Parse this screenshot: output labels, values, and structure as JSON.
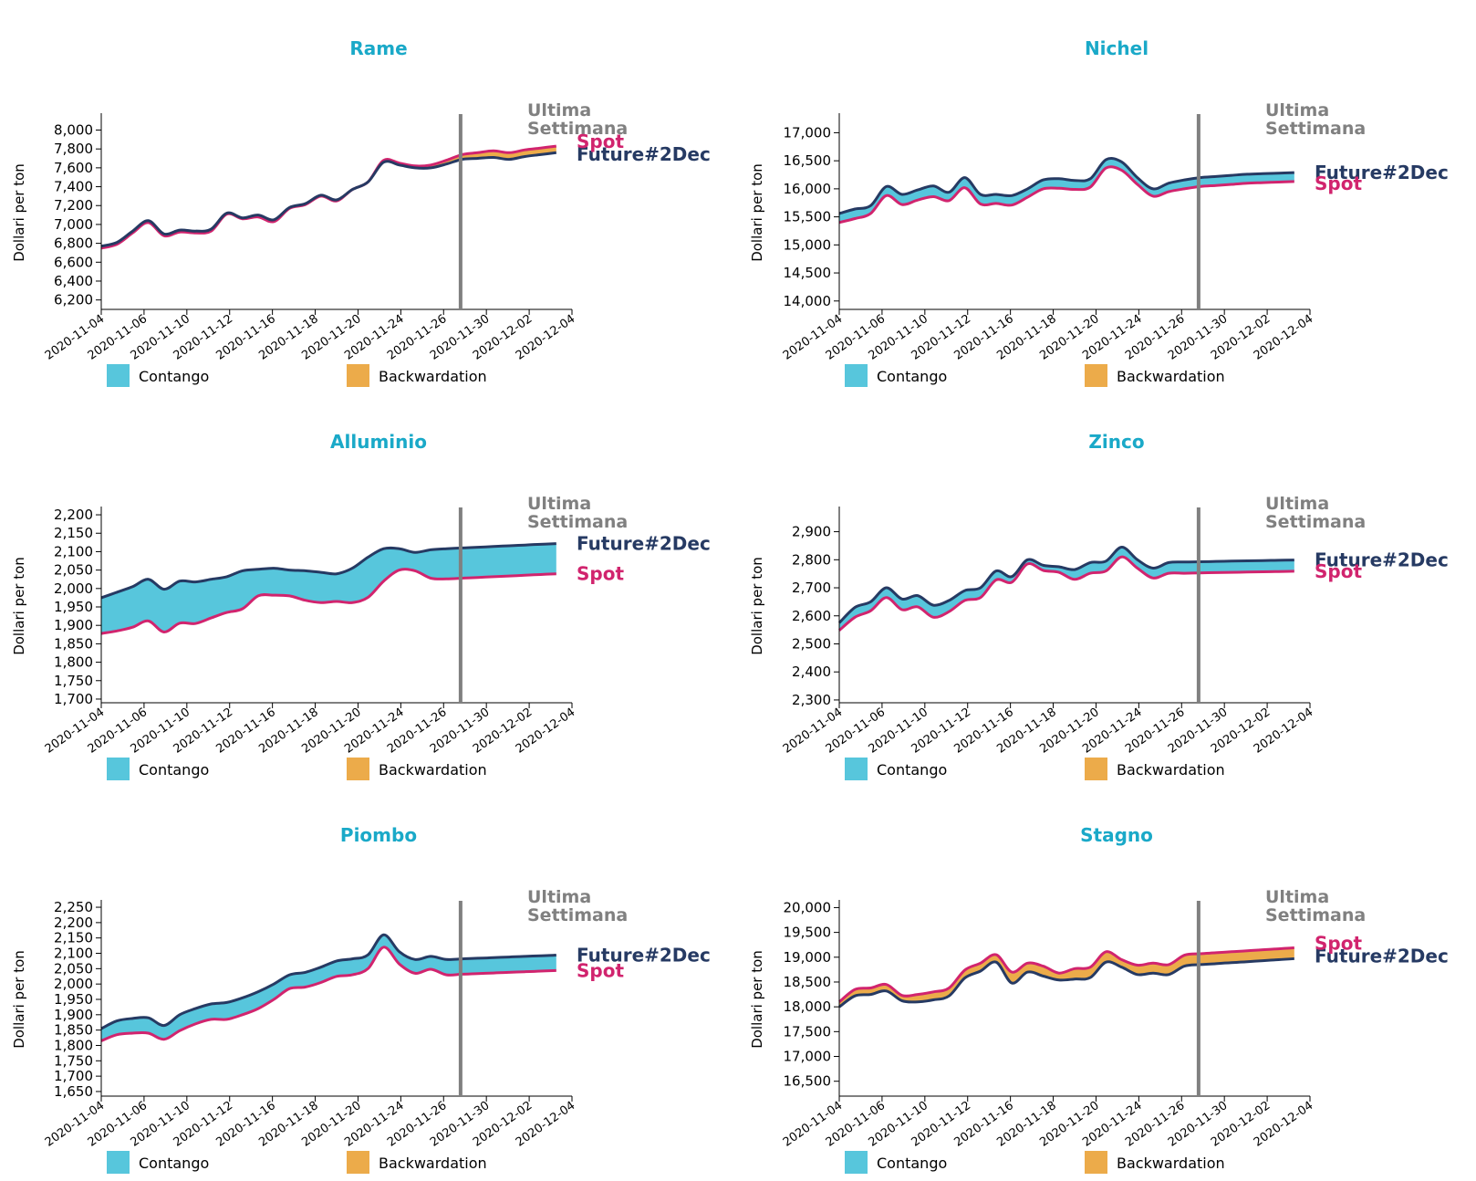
{
  "colors": {
    "title": "#1aa9c8",
    "future": "#263a63",
    "spot": "#d1246e",
    "contango": "#57c6dc",
    "backwardation": "#ecab4a",
    "marker": "#808080",
    "axis": "#000000"
  },
  "labels": {
    "ylabel": "Dollari per ton",
    "week_line1": "Ultima",
    "week_line2": "Settimana",
    "future": "Future#2Dec",
    "spot": "Spot",
    "contango": "Contango",
    "backwardation": "Backwardation"
  },
  "chart_data": [
    {
      "type": "area",
      "title": "Rame",
      "ylabel": "Dollari per ton",
      "xlim": [
        0,
        30
      ],
      "ylim": [
        6100,
        8150
      ],
      "yticks": [
        6200,
        6400,
        6600,
        6800,
        7000,
        7200,
        7400,
        7600,
        7800,
        8000
      ],
      "xtick_labels": [
        "2020-11-04",
        "2020-11-06",
        "2020-11-10",
        "2020-11-12",
        "2020-11-16",
        "2020-11-18",
        "2020-11-20",
        "2020-11-24",
        "2020-11-26",
        "2020-11-30",
        "2020-12-02",
        "2020-12-04"
      ],
      "xtick_positions": [
        0,
        2.727,
        5.455,
        8.182,
        10.909,
        13.636,
        16.364,
        19.091,
        21.818,
        24.545,
        27.273,
        30
      ],
      "last_week_x": 22.9,
      "x": [
        0,
        1,
        2,
        3,
        4,
        5,
        6,
        7,
        8,
        9,
        10,
        11,
        12,
        13,
        14,
        15,
        16,
        17,
        18,
        19,
        20,
        21,
        22,
        23,
        24,
        25,
        26,
        27,
        28,
        29
      ],
      "series": [
        {
          "name": "Future#2Dec",
          "values": [
            6770,
            6810,
            6930,
            7040,
            6900,
            6940,
            6930,
            6950,
            7120,
            7070,
            7100,
            7050,
            7180,
            7220,
            7310,
            7260,
            7370,
            7450,
            7660,
            7630,
            7600,
            7600,
            7640,
            7690,
            7700,
            7710,
            7690,
            7720,
            7740,
            7760
          ]
        },
        {
          "name": "Spot",
          "values": [
            6750,
            6790,
            6910,
            7020,
            6880,
            6920,
            6910,
            6930,
            7110,
            7060,
            7080,
            7030,
            7170,
            7210,
            7300,
            7250,
            7370,
            7450,
            7680,
            7650,
            7620,
            7630,
            7680,
            7740,
            7760,
            7780,
            7760,
            7790,
            7810,
            7830
          ]
        }
      ],
      "n_points": 30,
      "label_order": "spot_top"
    },
    {
      "type": "area",
      "title": "Nichel",
      "ylabel": "Dollari per ton",
      "xlim": [
        0,
        30
      ],
      "ylim": [
        13850,
        17300
      ],
      "yticks": [
        14000,
        14500,
        15000,
        15500,
        16000,
        16500,
        17000
      ],
      "xtick_labels": [
        "2020-11-04",
        "2020-11-06",
        "2020-11-10",
        "2020-11-12",
        "2020-11-16",
        "2020-11-18",
        "2020-11-20",
        "2020-11-24",
        "2020-11-26",
        "2020-11-30",
        "2020-12-02",
        "2020-12-04"
      ],
      "xtick_positions": [
        0,
        2.727,
        5.455,
        8.182,
        10.909,
        13.636,
        16.364,
        19.091,
        21.818,
        24.545,
        27.273,
        30
      ],
      "last_week_x": 22.9,
      "x": [
        0,
        1,
        2,
        3,
        4,
        5,
        6,
        7,
        8,
        9,
        10,
        11,
        12,
        13,
        14,
        15,
        16,
        17,
        18,
        19,
        20,
        21,
        22,
        23,
        24,
        25,
        26,
        27,
        28,
        29
      ],
      "series": [
        {
          "name": "Future#2Dec",
          "values": [
            15560,
            15640,
            15700,
            16040,
            15900,
            15980,
            16050,
            15940,
            16200,
            15900,
            15900,
            15880,
            16000,
            16160,
            16180,
            16150,
            16180,
            16520,
            16480,
            16200,
            16000,
            16100,
            16160,
            16200,
            16220,
            16240,
            16260,
            16270,
            16280,
            16290
          ]
        },
        {
          "name": "Spot",
          "values": [
            15400,
            15470,
            15560,
            15880,
            15720,
            15800,
            15860,
            15790,
            16020,
            15730,
            15740,
            15710,
            15850,
            16000,
            16010,
            15990,
            16030,
            16370,
            16330,
            16080,
            15870,
            15950,
            16000,
            16040,
            16060,
            16080,
            16100,
            16110,
            16120,
            16130
          ]
        }
      ],
      "n_points": 30,
      "label_order": "future_top"
    },
    {
      "type": "area",
      "title": "Alluminio",
      "ylabel": "Dollari per ton",
      "xlim": [
        0,
        30
      ],
      "ylim": [
        1690,
        2215
      ],
      "yticks": [
        1700,
        1750,
        1800,
        1850,
        1900,
        1950,
        2000,
        2050,
        2100,
        2150,
        2200
      ],
      "xtick_labels": [
        "2020-11-04",
        "2020-11-06",
        "2020-11-10",
        "2020-11-12",
        "2020-11-16",
        "2020-11-18",
        "2020-11-20",
        "2020-11-24",
        "2020-11-26",
        "2020-11-30",
        "2020-12-02",
        "2020-12-04"
      ],
      "xtick_positions": [
        0,
        2.727,
        5.455,
        8.182,
        10.909,
        13.636,
        16.364,
        19.091,
        21.818,
        24.545,
        27.273,
        30
      ],
      "last_week_x": 22.9,
      "x": [
        0,
        1,
        2,
        3,
        4,
        5,
        6,
        7,
        8,
        9,
        10,
        11,
        12,
        13,
        14,
        15,
        16,
        17,
        18,
        19,
        20,
        21,
        22,
        23,
        24,
        25,
        26,
        27,
        28,
        29
      ],
      "series": [
        {
          "name": "Future#2Dec",
          "values": [
            1975,
            1990,
            2005,
            2025,
            1998,
            2020,
            2018,
            2025,
            2032,
            2048,
            2052,
            2055,
            2050,
            2048,
            2044,
            2040,
            2055,
            2085,
            2108,
            2108,
            2098,
            2105,
            2108,
            2110,
            2112,
            2114,
            2116,
            2118,
            2120,
            2122
          ]
        },
        {
          "name": "Spot",
          "values": [
            1878,
            1885,
            1895,
            1912,
            1882,
            1906,
            1905,
            1920,
            1935,
            1945,
            1980,
            1982,
            1980,
            1968,
            1962,
            1965,
            1962,
            1976,
            2020,
            2050,
            2048,
            2028,
            2026,
            2028,
            2030,
            2032,
            2034,
            2036,
            2038,
            2040
          ]
        }
      ],
      "n_points": 30,
      "label_order": "future_top"
    },
    {
      "type": "area",
      "title": "Zinco",
      "ylabel": "Dollari per ton",
      "xlim": [
        0,
        30
      ],
      "ylim": [
        2290,
        2980
      ],
      "yticks": [
        2300,
        2400,
        2500,
        2600,
        2700,
        2800,
        2900
      ],
      "xtick_labels": [
        "2020-11-04",
        "2020-11-06",
        "2020-11-10",
        "2020-11-12",
        "2020-11-16",
        "2020-11-18",
        "2020-11-20",
        "2020-11-24",
        "2020-11-26",
        "2020-11-30",
        "2020-12-02",
        "2020-12-04"
      ],
      "xtick_positions": [
        0,
        2.727,
        5.455,
        8.182,
        10.909,
        13.636,
        16.364,
        19.091,
        21.818,
        24.545,
        27.273,
        30
      ],
      "last_week_x": 22.9,
      "x": [
        0,
        1,
        2,
        3,
        4,
        5,
        6,
        7,
        8,
        9,
        10,
        11,
        12,
        13,
        14,
        15,
        16,
        17,
        18,
        19,
        20,
        21,
        22,
        23,
        24,
        25,
        26,
        27,
        28,
        29
      ],
      "series": [
        {
          "name": "Future#2Dec",
          "values": [
            2575,
            2630,
            2650,
            2700,
            2660,
            2672,
            2638,
            2655,
            2690,
            2700,
            2760,
            2740,
            2800,
            2780,
            2775,
            2765,
            2790,
            2795,
            2845,
            2800,
            2770,
            2790,
            2792,
            2793,
            2794,
            2795,
            2796,
            2797,
            2798,
            2799
          ]
        },
        {
          "name": "Spot",
          "values": [
            2548,
            2595,
            2618,
            2665,
            2622,
            2632,
            2595,
            2615,
            2655,
            2665,
            2728,
            2720,
            2785,
            2762,
            2755,
            2730,
            2752,
            2760,
            2810,
            2770,
            2735,
            2752,
            2752,
            2753,
            2754,
            2755,
            2756,
            2757,
            2758,
            2759
          ]
        }
      ],
      "n_points": 30,
      "label_order": "future_top"
    },
    {
      "type": "area",
      "title": "Piombo",
      "ylabel": "Dollari per ton",
      "xlim": [
        0,
        30
      ],
      "ylim": [
        1635,
        2265
      ],
      "yticks": [
        1650,
        1700,
        1750,
        1800,
        1850,
        1900,
        1950,
        2000,
        2050,
        2100,
        2150,
        2200,
        2250
      ],
      "xtick_labels": [
        "2020-11-04",
        "2020-11-06",
        "2020-11-10",
        "2020-11-12",
        "2020-11-16",
        "2020-11-18",
        "2020-11-20",
        "2020-11-24",
        "2020-11-26",
        "2020-11-30",
        "2020-12-02",
        "2020-12-04"
      ],
      "xtick_positions": [
        0,
        2.727,
        5.455,
        8.182,
        10.909,
        13.636,
        16.364,
        19.091,
        21.818,
        24.545,
        27.273,
        30
      ],
      "last_week_x": 22.9,
      "x": [
        0,
        1,
        2,
        3,
        4,
        5,
        6,
        7,
        8,
        9,
        10,
        11,
        12,
        13,
        14,
        15,
        16,
        17,
        18,
        19,
        20,
        21,
        22,
        23,
        24,
        25,
        26,
        27,
        28,
        29
      ],
      "series": [
        {
          "name": "Future#2Dec",
          "values": [
            1855,
            1880,
            1888,
            1890,
            1865,
            1900,
            1920,
            1935,
            1940,
            1955,
            1975,
            2000,
            2030,
            2038,
            2055,
            2075,
            2082,
            2095,
            2160,
            2105,
            2080,
            2090,
            2080,
            2082,
            2084,
            2086,
            2088,
            2090,
            2092,
            2094
          ]
        },
        {
          "name": "Spot",
          "values": [
            1815,
            1835,
            1840,
            1840,
            1820,
            1848,
            1870,
            1885,
            1885,
            1900,
            1920,
            1950,
            1985,
            1990,
            2005,
            2025,
            2030,
            2050,
            2120,
            2065,
            2035,
            2048,
            2030,
            2032,
            2034,
            2036,
            2038,
            2040,
            2042,
            2044
          ]
        }
      ],
      "n_points": 30,
      "label_order": "future_top"
    },
    {
      "type": "area",
      "title": "Stagno",
      "ylabel": "Dollari per ton",
      "xlim": [
        0,
        30
      ],
      "ylim": [
        16200,
        20100
      ],
      "yticks": [
        16500,
        17000,
        17500,
        18000,
        18500,
        19000,
        19500,
        20000
      ],
      "xtick_labels": [
        "2020-11-04",
        "2020-11-06",
        "2020-11-10",
        "2020-11-12",
        "2020-11-16",
        "2020-11-18",
        "2020-11-20",
        "2020-11-24",
        "2020-11-26",
        "2020-11-30",
        "2020-12-02",
        "2020-12-04"
      ],
      "xtick_positions": [
        0,
        2.727,
        5.455,
        8.182,
        10.909,
        13.636,
        16.364,
        19.091,
        21.818,
        24.545,
        27.273,
        30
      ],
      "last_week_x": 22.9,
      "x": [
        0,
        1,
        2,
        3,
        4,
        5,
        6,
        7,
        8,
        9,
        10,
        11,
        12,
        13,
        14,
        15,
        16,
        17,
        18,
        19,
        20,
        21,
        22,
        23,
        24,
        25,
        26,
        27,
        28,
        29
      ],
      "series": [
        {
          "name": "Future#2Dec",
          "values": [
            18000,
            18220,
            18250,
            18320,
            18120,
            18100,
            18140,
            18220,
            18580,
            18720,
            18900,
            18480,
            18700,
            18620,
            18540,
            18560,
            18590,
            18900,
            18800,
            18650,
            18680,
            18650,
            18820,
            18850,
            18870,
            18890,
            18910,
            18930,
            18950,
            18970
          ]
        },
        {
          "name": "Spot",
          "values": [
            18100,
            18350,
            18380,
            18450,
            18230,
            18250,
            18300,
            18380,
            18740,
            18880,
            19050,
            18700,
            18880,
            18820,
            18680,
            18770,
            18800,
            19110,
            18950,
            18840,
            18880,
            18850,
            19040,
            19070,
            19090,
            19110,
            19130,
            19150,
            19170,
            19190
          ]
        }
      ],
      "n_points": 30,
      "label_order": "spot_top"
    }
  ]
}
